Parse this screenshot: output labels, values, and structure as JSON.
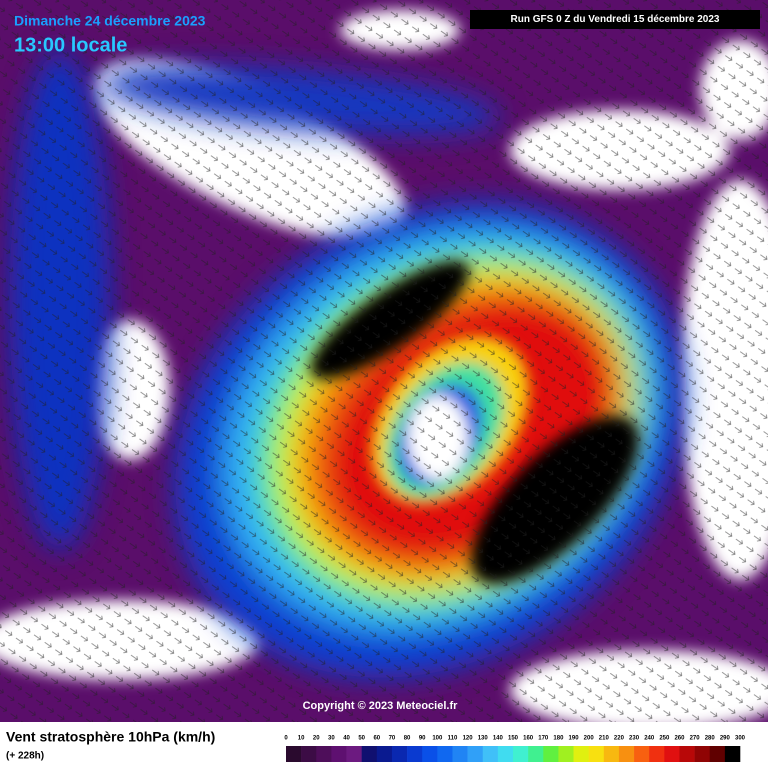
{
  "header": {
    "date": "Dimanche 24 décembre 2023",
    "time": "13:00 locale",
    "run": "Run GFS 0 Z du Vendredi 15 décembre 2023"
  },
  "copyright": "Copyright © 2023 Meteociel.fr",
  "legend": {
    "title": "Vent stratosphère 10hPa (km/h)",
    "subtitle": "(+ 228h)",
    "ticks": [
      0,
      10,
      20,
      30,
      40,
      50,
      60,
      70,
      80,
      90,
      100,
      110,
      120,
      130,
      140,
      150,
      160,
      170,
      180,
      190,
      200,
      210,
      220,
      230,
      240,
      250,
      260,
      270,
      280,
      290,
      300
    ],
    "colors": [
      "#2a0a2e",
      "#3c0c45",
      "#4e0e5a",
      "#5e1070",
      "#6c1a80",
      "#101070",
      "#0a1a90",
      "#0a28b0",
      "#0a3ad0",
      "#0a50e8",
      "#1068f0",
      "#2084f4",
      "#30a0f8",
      "#40c0f8",
      "#40dcf0",
      "#40f0d0",
      "#40f090",
      "#60f040",
      "#a0f020",
      "#e0f010",
      "#f8e010",
      "#f8b810",
      "#f89010",
      "#f86010",
      "#f03010",
      "#e01010",
      "#b80808",
      "#900404",
      "#600000",
      "#000000"
    ]
  }
}
